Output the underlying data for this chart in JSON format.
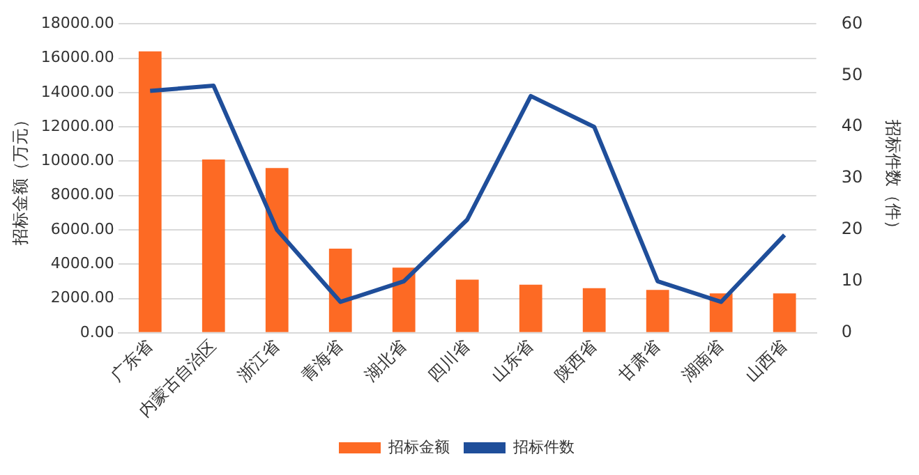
{
  "chart_data": {
    "type": "bar",
    "ylabel": "招标金额（万元）",
    "y2label": "招标件数（件）",
    "categories": [
      "广东省",
      "内蒙古自治区",
      "浙江省",
      "青海省",
      "湖北省",
      "四川省",
      "山东省",
      "陕西省",
      "甘肃省",
      "湖南省",
      "山西省"
    ],
    "series": [
      {
        "name": "招标金额",
        "color": "#fd6a24",
        "values": [
          16400,
          10100,
          9600,
          4900,
          3800,
          3100,
          2800,
          2600,
          2500,
          2300,
          2300
        ]
      },
      {
        "name": "招标件数",
        "type": "line",
        "axis": "y2",
        "color": "#1f4e9a",
        "values": [
          47,
          48,
          20,
          6,
          10,
          22,
          46,
          40,
          10,
          6,
          19
        ]
      }
    ],
    "ylim": [
      0,
      18000
    ],
    "yticks": [
      {
        "value": 0,
        "label": "0.00"
      },
      {
        "value": 2000,
        "label": "2000.00"
      },
      {
        "value": 4000,
        "label": "4000.00"
      },
      {
        "value": 6000,
        "label": "6000.00"
      },
      {
        "value": 8000,
        "label": "8000.00"
      },
      {
        "value": 10000,
        "label": "10000.00"
      },
      {
        "value": 12000,
        "label": "12000.00"
      },
      {
        "value": 14000,
        "label": "14000.00"
      },
      {
        "value": 16000,
        "label": "16000.00"
      },
      {
        "value": 18000,
        "label": "18000.00"
      }
    ],
    "y2lim": [
      0,
      60
    ],
    "y2ticks": [
      0,
      10,
      20,
      30,
      40,
      50,
      60
    ],
    "grid": "y",
    "legend": "bottom",
    "marker": "none",
    "line_style": "solid"
  }
}
